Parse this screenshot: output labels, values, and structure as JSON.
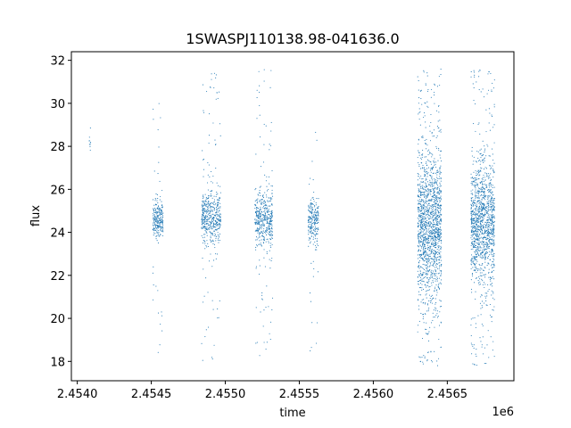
{
  "chart_data": {
    "type": "scatter",
    "title": "1SWASPJ110138.98-041636.0",
    "xlabel": "time",
    "ylabel": "flux",
    "x_offset_label": "1e6",
    "x_multiplier": 1000000,
    "xlim": [
      2453960,
      2456950
    ],
    "ylim": [
      17.1,
      32.4
    ],
    "x_ticks": [
      2454000,
      2454500,
      2455000,
      2455500,
      2456000,
      2456500
    ],
    "x_tick_labels": [
      "2.4540",
      "2.4545",
      "2.4550",
      "2.4555",
      "2.4560",
      "2.4565"
    ],
    "y_ticks": [
      18,
      20,
      22,
      24,
      26,
      28,
      30,
      32
    ],
    "y_tick_labels": [
      "18",
      "20",
      "22",
      "24",
      "26",
      "28",
      "30",
      "32"
    ],
    "grid": false,
    "marker_color": "#1f77b4",
    "clusters": [
      {
        "x_range": [
          2454080,
          2454090
        ],
        "y_center": 28.3,
        "core_sd": 0.3,
        "core_n": 6,
        "tail_range": [
          27.5,
          29.1
        ],
        "tail_n": 4
      },
      {
        "x_range": [
          2454510,
          2454580
        ],
        "y_center": 24.6,
        "core_sd": 0.45,
        "core_n": 230,
        "tail_range": [
          18.0,
          30.8
        ],
        "tail_n": 30
      },
      {
        "x_range": [
          2454840,
          2454970
        ],
        "y_center": 24.7,
        "core_sd": 0.6,
        "core_n": 430,
        "tail_range": [
          18.0,
          31.4
        ],
        "tail_n": 70
      },
      {
        "x_range": [
          2455200,
          2455320
        ],
        "y_center": 24.6,
        "core_sd": 0.65,
        "core_n": 420,
        "tail_range": [
          18.2,
          31.6
        ],
        "tail_n": 70
      },
      {
        "x_range": [
          2455560,
          2455630
        ],
        "y_center": 24.5,
        "core_sd": 0.5,
        "core_n": 220,
        "tail_range": [
          18.3,
          30.9
        ],
        "tail_n": 25
      },
      {
        "x_range": [
          2456300,
          2456460
        ],
        "y_center": 24.3,
        "core_sd": 1.6,
        "core_n": 1300,
        "tail_range": [
          17.8,
          31.6
        ],
        "tail_n": 260
      },
      {
        "x_range": [
          2456660,
          2456820
        ],
        "y_center": 24.4,
        "core_sd": 1.4,
        "core_n": 1100,
        "tail_range": [
          17.8,
          31.6
        ],
        "tail_n": 220
      }
    ]
  }
}
